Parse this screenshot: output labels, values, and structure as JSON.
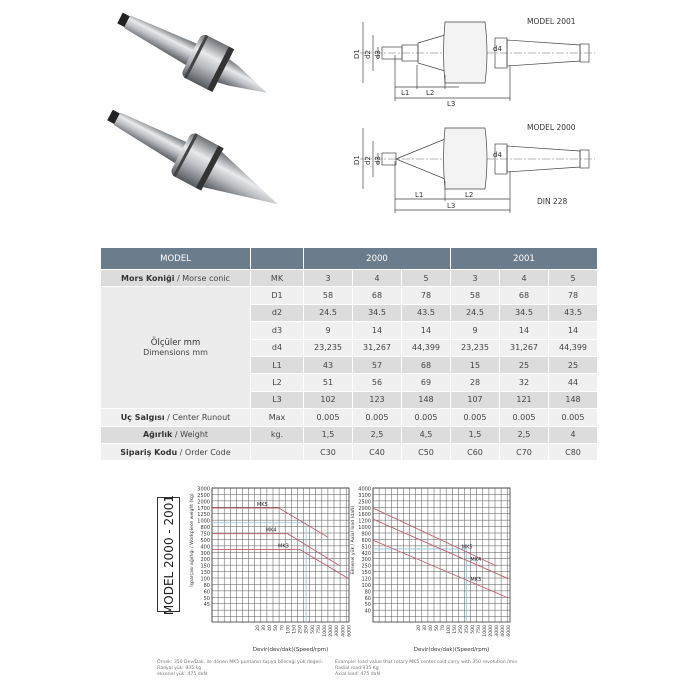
{
  "drawings": {
    "top": {
      "model": "MODEL 2001",
      "labels": [
        "D1",
        "d2",
        "d3",
        "d4",
        "L1",
        "L2",
        "L3"
      ]
    },
    "bottom": {
      "model": "MODEL 2000",
      "standard": "DIN 228",
      "labels": [
        "D1",
        "d2",
        "d3",
        "d4",
        "L1",
        "L2",
        "L3"
      ]
    }
  },
  "table": {
    "header": {
      "model": "MODEL",
      "groups": [
        "2000",
        "2001"
      ]
    },
    "rows": [
      {
        "label_bold": "Mors Koniği",
        "label_rest": " / Morse conic",
        "unit": "MK",
        "values": [
          "3",
          "4",
          "5",
          "3",
          "4",
          "5"
        ]
      },
      {
        "unit": "D1",
        "values": [
          "58",
          "68",
          "78",
          "58",
          "68",
          "78"
        ]
      },
      {
        "unit": "d2",
        "values": [
          "24.5",
          "34.5",
          "43.5",
          "24.5",
          "34.5",
          "43.5"
        ]
      },
      {
        "unit": "d3",
        "values": [
          "9",
          "14",
          "14",
          "9",
          "14",
          "14"
        ]
      },
      {
        "unit": "d4",
        "values": [
          "23,235",
          "31,267",
          "44,399",
          "23,235",
          "31,267",
          "44,399"
        ]
      },
      {
        "unit": "L1",
        "values": [
          "43",
          "57",
          "68",
          "15",
          "25",
          "25"
        ]
      },
      {
        "unit": "L2",
        "values": [
          "51",
          "56",
          "69",
          "28",
          "32",
          "44"
        ]
      },
      {
        "unit": "L3",
        "values": [
          "102",
          "123",
          "148",
          "107",
          "121",
          "148"
        ]
      },
      {
        "label_bold": "Uç Salgısı",
        "label_rest": " / Center Runout",
        "unit": "Max",
        "values": [
          "0.005",
          "0.005",
          "0.005",
          "0.005",
          "0.005",
          "0.005"
        ]
      },
      {
        "label_bold": "Ağırlık",
        "label_rest": " / Weight",
        "unit": "kg.",
        "values": [
          "1,5",
          "2,5",
          "4,5",
          "1,5",
          "2,5",
          "4"
        ]
      },
      {
        "label_bold": "Sipariş Kodu",
        "label_rest": " / Order Code",
        "unit": "",
        "values": [
          "C30",
          "C40",
          "C50",
          "C60",
          "C70",
          "C80"
        ]
      }
    ],
    "dimensions_label": {
      "line1": "Ölçüler mm",
      "line2": "Dimensions mm"
    }
  },
  "charts_side_label": "MODEL 2000 - 2001",
  "chart_data": [
    {
      "type": "line",
      "ylabel": "İşparçası ağırlığı / Workpiece weight (kg)",
      "xlabel": "Devir(dev/dak)(Speed/rpm)",
      "x_ticks": [
        20,
        30,
        40,
        50,
        70,
        100,
        150,
        250,
        350,
        500,
        750,
        1000,
        2000,
        3000,
        4000,
        6000
      ],
      "y_ticks": [
        3000,
        2500,
        2000,
        1700,
        1250,
        1000,
        800,
        750,
        500,
        400,
        300,
        200,
        150,
        130,
        100,
        80,
        60,
        50,
        45
      ],
      "grid": true,
      "series": [
        {
          "name": "MK5",
          "start_load": 1700,
          "points": [
            [
              60,
              1700
            ],
            [
              1500,
              600
            ]
          ]
        },
        {
          "name": "MK4",
          "start_load": 750,
          "points": [
            [
              100,
              750
            ],
            [
              3500,
              150
            ]
          ]
        },
        {
          "name": "MK3",
          "start_load": 350,
          "points": [
            [
              250,
              350
            ],
            [
              6000,
              100
            ]
          ]
        }
      ],
      "guide": {
        "rpm": 350,
        "load": 935
      }
    },
    {
      "type": "line",
      "ylabel": "Eksenel yük / Axial load (daN)",
      "xlabel": "Devir(dev/dak)(Speed/rpm)",
      "x_ticks": [
        20,
        30,
        40,
        50,
        70,
        100,
        150,
        250,
        350,
        500,
        750,
        1000,
        2000,
        3000,
        4000,
        6000
      ],
      "y_ticks": [
        4000,
        3100,
        2500,
        2000,
        1600,
        1200,
        1000,
        800,
        600,
        510,
        420,
        300,
        250,
        150,
        120,
        100,
        80,
        60,
        50,
        40
      ],
      "grid": true,
      "series": [
        {
          "name": "MK5",
          "start_load": 2000,
          "points": [
            [
              3000,
              250
            ]
          ]
        },
        {
          "name": "MK4",
          "start_load": 1300,
          "points": [
            [
              6000,
              120
            ]
          ]
        },
        {
          "name": "MK3",
          "start_load": 600,
          "points": [
            [
              6000,
              60
            ]
          ]
        }
      ],
      "guide": {
        "rpm": 350,
        "load": 475
      }
    }
  ],
  "footnotes": {
    "tr": [
      "Örnek: 350 Dev/Dak. ile dönen MK5 puntanın taşıya bileceği yük değeri:",
      "Radyal yük: 935 kg",
      "eksenel yük: 475 daN"
    ],
    "en": [
      "Example: load value that rotary MK5 center cold carry with 350 revolution /min",
      "Radial road:935 Kg",
      "Axial load: 475 daN"
    ]
  },
  "colors": {
    "header": "#6b7c8d",
    "series": "#c0606e",
    "guide": "#8fc3d6"
  }
}
